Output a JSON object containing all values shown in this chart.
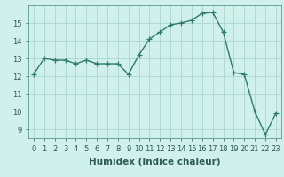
{
  "x": [
    0,
    1,
    2,
    3,
    4,
    5,
    6,
    7,
    8,
    9,
    10,
    11,
    12,
    13,
    14,
    15,
    16,
    17,
    18,
    19,
    20,
    21,
    22,
    23
  ],
  "y": [
    12.1,
    13.0,
    12.9,
    12.9,
    12.7,
    12.9,
    12.7,
    12.7,
    12.7,
    12.1,
    13.2,
    14.1,
    14.5,
    14.9,
    15.0,
    15.15,
    15.55,
    15.6,
    14.5,
    12.2,
    12.1,
    10.0,
    8.7,
    9.9
  ],
  "line_color": "#2e7b6e",
  "marker": "+",
  "marker_size": 4,
  "linewidth": 1.0,
  "bg_color": "#cff0eb",
  "grid_color": "#aad8d0",
  "xlabel": "Humidex (Indice chaleur)",
  "xlabel_fontsize": 7.5,
  "tick_fontsize": 6.0,
  "xlim": [
    -0.5,
    23.5
  ],
  "ylim": [
    8.5,
    16.0
  ],
  "yticks": [
    9,
    10,
    11,
    12,
    13,
    14,
    15
  ],
  "xticks": [
    0,
    1,
    2,
    3,
    4,
    5,
    6,
    7,
    8,
    9,
    10,
    11,
    12,
    13,
    14,
    15,
    16,
    17,
    18,
    19,
    20,
    21,
    22,
    23
  ]
}
